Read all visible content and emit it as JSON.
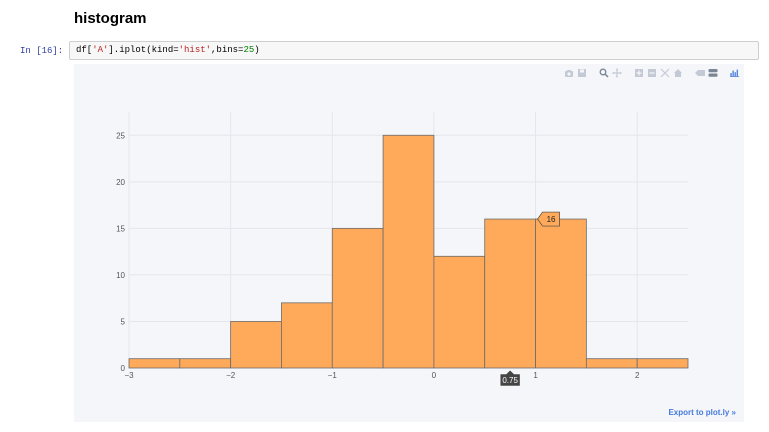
{
  "heading": "histogram",
  "cell": {
    "prompt": "In [16]:",
    "code_prefix": "df[",
    "code_str1": "'A'",
    "code_mid": "].iplot(kind=",
    "code_str2": "'hist'",
    "code_mid2": ",bins=",
    "code_num": "25",
    "code_suffix": ")"
  },
  "modebar": {
    "icons": [
      "camera-icon",
      "save-icon",
      "zoom-icon",
      "pan-icon",
      "zoom-in-icon",
      "zoom-out-icon",
      "autoscale-icon",
      "home-icon",
      "spike-lines-icon",
      "compare-icon",
      "plotly-logo-icon"
    ]
  },
  "export_link": "Export to plot.ly »",
  "colors": {
    "bar_fill": "#FFA95A",
    "bar_stroke": "#6b6b6b",
    "plot_bg": "#f5f6f9",
    "grid": "#e4e6ec"
  },
  "chart_data": {
    "type": "bar",
    "title": "",
    "xlabel": "",
    "ylabel": "",
    "bin_edges": [
      -3,
      -2.5,
      -2,
      -1.5,
      -1,
      -0.5,
      0,
      0.5,
      1,
      1.5,
      2,
      2.5
    ],
    "values": [
      1,
      1,
      5,
      7,
      15,
      25,
      12,
      16,
      16,
      1,
      1
    ],
    "xlim": [
      -3,
      2.5
    ],
    "ylim": [
      0,
      27.5
    ],
    "x_ticks": [
      -3,
      -2,
      -1,
      0,
      1,
      2
    ],
    "x_tick_labels": [
      "−3",
      "−2",
      "−1",
      "0",
      "1",
      "2"
    ],
    "y_ticks": [
      0,
      5,
      10,
      15,
      20,
      25
    ],
    "y_tick_labels": [
      "0",
      "5",
      "10",
      "15",
      "20",
      "25"
    ],
    "grid": true,
    "hover": {
      "x_label": "0.75",
      "y_label": "16",
      "bin_index": 7
    }
  }
}
